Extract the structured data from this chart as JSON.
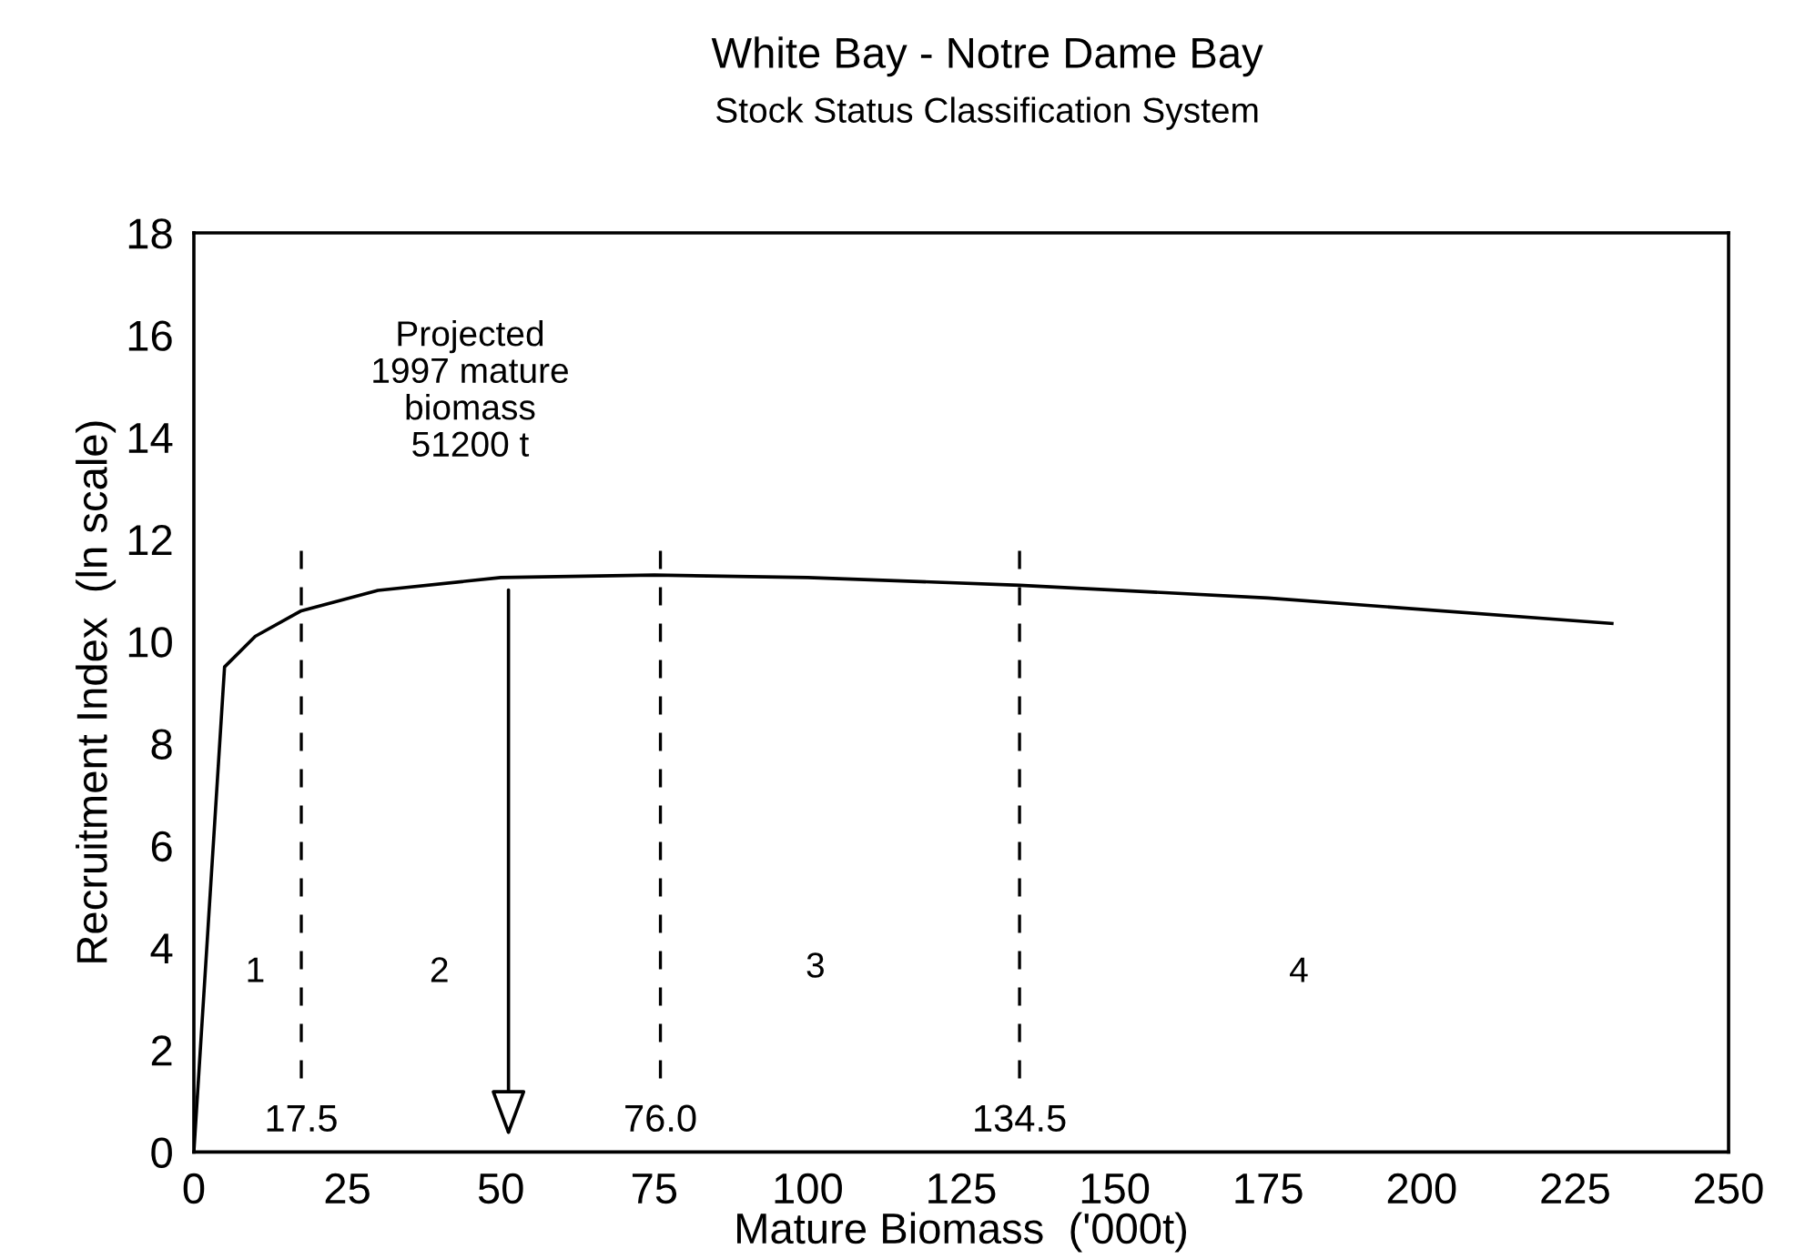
{
  "chart_data": {
    "type": "line",
    "title": "White Bay - Notre Dame Bay",
    "subtitle": "Stock Status Classification System",
    "xlabel": "Mature Biomass  ('000t)",
    "ylabel": "Recruitment Index  (ln scale)",
    "x": [
      0,
      5,
      10,
      17.5,
      30,
      50,
      75,
      100,
      134.5,
      175,
      231
    ],
    "values": [
      0,
      9.5,
      10.1,
      10.6,
      11.0,
      11.25,
      11.3,
      11.25,
      11.1,
      10.85,
      10.35
    ],
    "color": "#000000",
    "marker": "none",
    "line_style": "solid",
    "xlim": [
      0,
      250
    ],
    "xticks": [
      0,
      25,
      50,
      75,
      100,
      125,
      150,
      175,
      200,
      225,
      250
    ],
    "ylim": [
      0,
      18
    ],
    "yticks": [
      0,
      2,
      4,
      6,
      8,
      10,
      12,
      14,
      16,
      18
    ],
    "grid": false,
    "ref_lines": [
      {
        "axis": "x",
        "value": 17.5,
        "label": "17.5",
        "line_style": "dashed"
      },
      {
        "axis": "x",
        "value": 76.0,
        "label": "76.0",
        "line_style": "dashed"
      },
      {
        "axis": "x",
        "value": 134.5,
        "label": "134.5",
        "line_style": "dashed"
      }
    ],
    "annotations": [
      "Projected\n1997 mature\nbiomass\n51200 t",
      "1",
      "2",
      "3",
      "4"
    ]
  }
}
